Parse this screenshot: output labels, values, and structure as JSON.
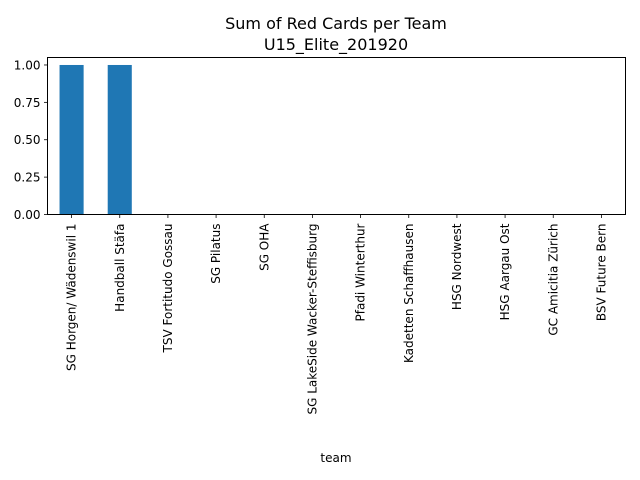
{
  "chart_data": {
    "type": "bar",
    "title": "Sum of Red Cards per Team",
    "subtitle": "U15_Elite_201920",
    "xlabel": "team",
    "ylabel": "",
    "categories": [
      "SG Horgen/ Wädenswil 1",
      "Handball Stäfa",
      "TSV Fortitudo Gossau",
      "SG Pilatus",
      "SG OHA",
      "SG LakeSide Wacker-Steffisburg",
      "Pfadi Winterthur",
      "Kadetten Schaffhausen",
      "HSG Nordwest",
      "HSG Aargau Ost",
      "GC Amicitia Zürich",
      "BSV Future Bern"
    ],
    "values": [
      1,
      1,
      0,
      0,
      0,
      0,
      0,
      0,
      0,
      0,
      0,
      0
    ],
    "ylim": [
      0,
      1.05
    ],
    "yticks": [
      0.0,
      0.25,
      0.5,
      0.75,
      1.0
    ],
    "ytick_labels": [
      "0.00",
      "0.25",
      "0.50",
      "0.75",
      "1.00"
    ],
    "bar_color": "#1f77b4",
    "grid": false,
    "legend": "none"
  }
}
